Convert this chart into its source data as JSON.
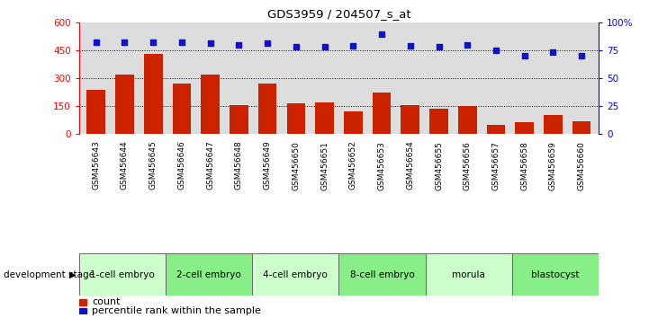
{
  "title": "GDS3959 / 204507_s_at",
  "samples": [
    "GSM456643",
    "GSM456644",
    "GSM456645",
    "GSM456646",
    "GSM456647",
    "GSM456648",
    "GSM456649",
    "GSM456650",
    "GSM456651",
    "GSM456652",
    "GSM456653",
    "GSM456654",
    "GSM456655",
    "GSM456656",
    "GSM456657",
    "GSM456658",
    "GSM456659",
    "GSM456660"
  ],
  "counts": [
    235,
    320,
    430,
    270,
    320,
    155,
    270,
    165,
    170,
    120,
    220,
    155,
    135,
    148,
    45,
    60,
    100,
    65
  ],
  "percentile_ranks": [
    82,
    82,
    82,
    82,
    81,
    80,
    81,
    78,
    78,
    79,
    89,
    79,
    78,
    80,
    75,
    70,
    73,
    70
  ],
  "ylim_left": [
    0,
    600
  ],
  "ylim_right": [
    0,
    100
  ],
  "yticks_left": [
    0,
    150,
    300,
    450,
    600
  ],
  "yticks_right": [
    0,
    25,
    50,
    75,
    100
  ],
  "stages": [
    {
      "label": "1-cell embryo",
      "start": 0,
      "end": 3
    },
    {
      "label": "2-cell embryo",
      "start": 3,
      "end": 6
    },
    {
      "label": "4-cell embryo",
      "start": 6,
      "end": 9
    },
    {
      "label": "8-cell embryo",
      "start": 9,
      "end": 12
    },
    {
      "label": "morula",
      "start": 12,
      "end": 15
    },
    {
      "label": "blastocyst",
      "start": 15,
      "end": 18
    }
  ],
  "stage_colors_light": "#ccffcc",
  "stage_colors_dark": "#88ee88",
  "bar_color": "#cc2200",
  "dot_color": "#1111cc",
  "legend_count_color": "#cc2200",
  "legend_pct_color": "#1111cc",
  "grid_color": "#000000",
  "bg_color": "#dddddd",
  "xlabel_bg": "#bbbbbb"
}
